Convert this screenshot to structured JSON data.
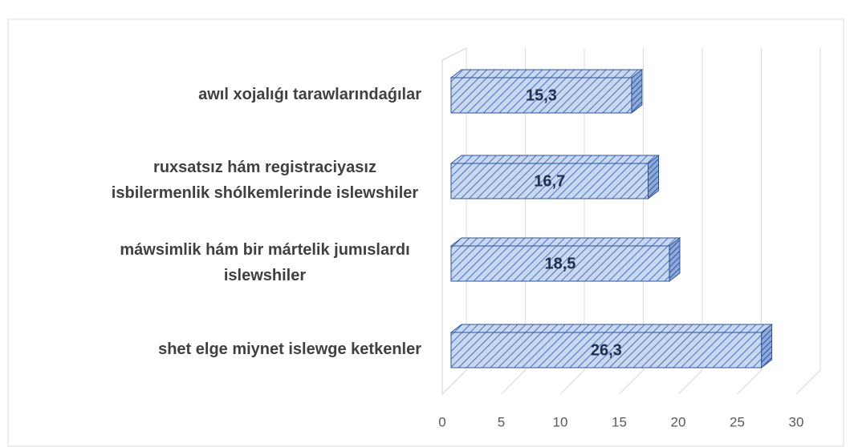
{
  "chart_data": {
    "type": "bar3d",
    "categories": [
      "awıl xojalıǵı tarawlarındaǵılar",
      "ruxsatsız hám registraciyasız\nisbilermenlik shólkemlerinde islewshiler",
      "máwsimlik hám bir mártelik jumıslardı\nislewshiler",
      "shet elge miynet islewge ketkenler"
    ],
    "values": [
      15.3,
      16.7,
      18.5,
      26.3
    ],
    "value_labels": [
      "15,3",
      "16,7",
      "18,5",
      "26,3"
    ],
    "color": "#4472c4",
    "xlim": [
      0,
      30
    ],
    "xticks": [
      0,
      5,
      10,
      15,
      20,
      25,
      30
    ],
    "grid": true
  }
}
